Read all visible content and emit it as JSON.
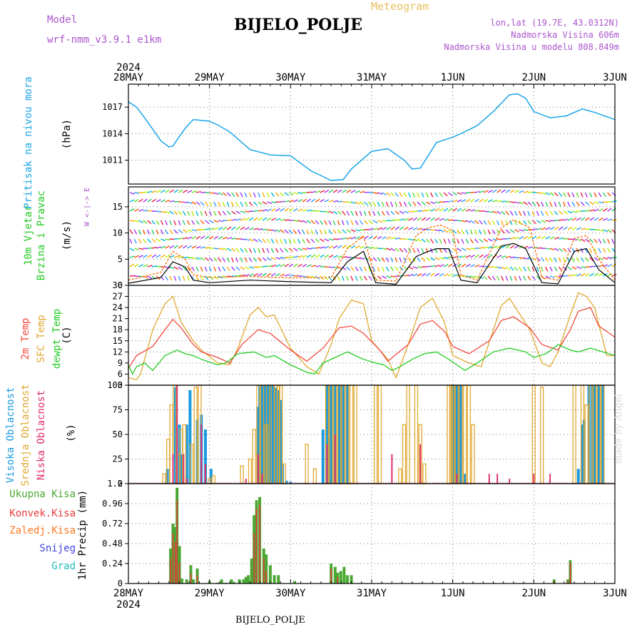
{
  "header": {
    "model_label": "Model",
    "model_name": "wrf-nmm_v3.9.1 e1km",
    "meteogram_label": "Meteogram",
    "station": "BIJELO_POLJE",
    "lonlat": "lon,lat (19.7E, 43.0312N)",
    "elevation": "Nadmorska Visina 606m",
    "model_elevation": "Nadmorska Visina u modelu 808.849m"
  },
  "footer": {
    "station": "BIJELO_POLJE",
    "credit": "made by Angel"
  },
  "time_axis": {
    "year": "2024",
    "labels": [
      "28MAY",
      "29MAY",
      "30MAY",
      "31MAY",
      "1JUN",
      "2JUN",
      "3JUN"
    ]
  },
  "colors": {
    "pressure": "#1ba6e8",
    "temp2m": "#f04a3c",
    "sfc_temp": "#e0a830",
    "dewpt": "#22cc22",
    "cloud_high": "#1a9be0",
    "cloud_mid": "#e0a830",
    "cloud_low": "#e0306a",
    "precip_total": "#4aa832",
    "precip_conv": "#e83a3a",
    "wind_speed": "#000000",
    "wind_gust": "#ff6a00",
    "purple_text": "#aa55cc"
  },
  "chart_data": [
    {
      "type": "line",
      "panel": "pressure",
      "ylabel_left": "Pritisak na nivou mora",
      "ylabel": "(hPa)",
      "yticks": [
        1011,
        1014,
        1017
      ],
      "ylim": [
        1008.3,
        1019.6
      ],
      "series": [
        {
          "x": [
            0,
            0.1,
            0.2,
            0.3,
            0.4,
            0.5,
            0.55,
            0.6,
            0.7,
            0.8,
            0.9,
            1.0,
            1.1,
            1.25,
            1.5,
            1.75,
            2.0,
            2.25,
            2.5,
            2.65,
            2.75,
            3.0,
            3.2,
            3.4,
            3.5,
            3.6,
            3.8,
            4.0,
            4.1,
            4.3,
            4.5,
            4.7,
            4.8,
            4.9,
            5.0,
            5.2,
            5.4,
            5.6,
            5.75,
            6.0
          ],
          "y": [
            1017.6,
            1017.0,
            1015.8,
            1014.5,
            1013.2,
            1012.5,
            1012.6,
            1013.3,
            1014.6,
            1015.6,
            1015.5,
            1015.4,
            1015.0,
            1014.2,
            1012.2,
            1011.6,
            1011.5,
            1009.8,
            1008.7,
            1008.8,
            1010.0,
            1012.0,
            1012.3,
            1011.0,
            1010.0,
            1010.1,
            1013.0,
            1013.6,
            1014.0,
            1014.9,
            1016.5,
            1018.4,
            1018.5,
            1018.0,
            1016.5,
            1015.8,
            1016.0,
            1016.8,
            1016.4,
            1015.6
          ]
        }
      ]
    },
    {
      "type": "line",
      "panel": "wind",
      "ylabel_left": [
        "10m Vjetar",
        "Brzina i Pravac"
      ],
      "ylabel": "(m/s)",
      "compass": "W <-|-> E",
      "yticks": [
        0,
        5,
        10,
        15
      ],
      "ylim": [
        0,
        18.8
      ],
      "series": [
        {
          "name": "speed",
          "x": [
            0,
            0.4,
            0.55,
            0.7,
            0.8,
            1.0,
            1.5,
            2.0,
            2.5,
            2.7,
            2.9,
            3.05,
            3.3,
            3.55,
            3.7,
            3.8,
            3.95,
            4.1,
            4.3,
            4.6,
            4.75,
            4.9,
            5.1,
            5.3,
            5.5,
            5.65,
            5.8,
            6.0
          ],
          "y": [
            0.4,
            1.5,
            4.5,
            3.5,
            1.0,
            0.5,
            1.0,
            0.7,
            0.5,
            4.5,
            6.5,
            0.5,
            0.2,
            5.5,
            6.5,
            7.0,
            7.0,
            1.0,
            0.5,
            7.5,
            8.0,
            7.0,
            0.5,
            0.3,
            6.5,
            7.0,
            3.0,
            0.5
          ]
        },
        {
          "name": "gust",
          "x": [
            0,
            0.4,
            0.55,
            0.7,
            0.8,
            1.0,
            1.5,
            2.0,
            2.5,
            2.7,
            2.9,
            3.05,
            3.3,
            3.55,
            3.7,
            3.85,
            4.0,
            4.1,
            4.3,
            4.6,
            4.75,
            4.95,
            5.1,
            5.3,
            5.5,
            5.65,
            5.8,
            6.0
          ],
          "y": [
            1.0,
            2.5,
            6.5,
            5.0,
            2.0,
            1.5,
            1.7,
            1.4,
            1.5,
            7.0,
            9.5,
            1.0,
            0.8,
            9.5,
            11.0,
            11.5,
            10.5,
            2.0,
            1.0,
            11.0,
            12.5,
            11.0,
            1.5,
            1.0,
            9.0,
            9.5,
            5.0,
            1.0
          ]
        }
      ]
    },
    {
      "type": "line",
      "panel": "temperature",
      "ylabel_left": [
        "2m Temp",
        "SFC Temp",
        "dewpt Temp"
      ],
      "ylabel": "(C)",
      "yticks": [
        3,
        6,
        9,
        12,
        15,
        18,
        21,
        24,
        27,
        30
      ],
      "ylim": [
        3,
        30
      ],
      "series": [
        {
          "name": "2m Temp",
          "x": [
            0,
            0.1,
            0.3,
            0.45,
            0.55,
            0.65,
            0.8,
            0.9,
            1.1,
            1.25,
            1.4,
            1.6,
            1.75,
            2.0,
            2.2,
            2.4,
            2.6,
            2.75,
            2.9,
            3.1,
            3.2,
            3.45,
            3.6,
            3.75,
            3.9,
            4.0,
            4.2,
            4.45,
            4.6,
            4.75,
            4.95,
            5.1,
            5.3,
            5.45,
            5.55,
            5.7,
            5.8,
            6.0
          ],
          "y": [
            7.5,
            11,
            13.5,
            18,
            20.8,
            18.5,
            14,
            12,
            10.5,
            9,
            14,
            18,
            17,
            12.5,
            9.5,
            13,
            18.5,
            19,
            17,
            12.5,
            9.5,
            14,
            19.5,
            20.5,
            17.5,
            13.5,
            11.5,
            15,
            20.5,
            21.5,
            18.5,
            14,
            12.5,
            18,
            23,
            24,
            19,
            16
          ]
        },
        {
          "name": "SFC Temp",
          "x": [
            0,
            0.1,
            0.15,
            0.3,
            0.45,
            0.5,
            0.55,
            0.65,
            0.8,
            0.9,
            1.1,
            1.25,
            1.35,
            1.5,
            1.6,
            1.7,
            1.8,
            2.0,
            2.2,
            2.35,
            2.5,
            2.6,
            2.75,
            2.9,
            3.0,
            3.2,
            3.3,
            3.45,
            3.6,
            3.75,
            3.9,
            4.0,
            4.2,
            4.35,
            4.6,
            4.7,
            4.95,
            5.1,
            5.2,
            5.3,
            5.45,
            5.55,
            5.65,
            5.75,
            5.9,
            6.0
          ],
          "y": [
            5,
            4.5,
            6,
            18,
            25,
            26,
            27,
            20,
            15,
            12.5,
            9,
            8.5,
            13,
            22,
            24,
            21.5,
            22,
            13,
            8,
            6,
            14,
            21,
            26,
            25,
            15,
            10,
            5,
            14,
            24,
            26.5,
            20,
            11,
            9,
            8,
            24.5,
            26.5,
            18,
            9,
            8,
            12,
            22,
            28,
            27,
            24,
            11,
            11
          ]
        },
        {
          "name": "dewpt Temp",
          "x": [
            0,
            0.05,
            0.1,
            0.2,
            0.3,
            0.45,
            0.6,
            0.7,
            0.8,
            0.9,
            1.1,
            1.2,
            1.35,
            1.55,
            1.7,
            1.8,
            2.0,
            2.2,
            2.3,
            2.4,
            2.55,
            2.7,
            2.8,
            2.9,
            3.05,
            3.15,
            3.25,
            3.35,
            3.5,
            3.65,
            3.8,
            3.95,
            4.05,
            4.15,
            4.3,
            4.5,
            4.7,
            4.9,
            5.0,
            5.15,
            5.3,
            5.45,
            5.55,
            5.7,
            5.85,
            6.0
          ],
          "y": [
            8.5,
            6,
            8,
            9,
            7,
            11,
            12.5,
            11.5,
            11,
            10,
            8.5,
            9,
            11.5,
            12,
            10.5,
            11,
            8.5,
            6.5,
            6,
            9,
            10.5,
            12,
            11,
            10,
            9,
            8.5,
            7,
            8,
            10,
            11.5,
            12,
            10,
            8.5,
            7,
            9,
            12,
            13,
            12,
            10.5,
            11.5,
            14,
            12.5,
            12,
            13,
            12,
            11
          ]
        }
      ]
    },
    {
      "type": "bar",
      "panel": "cloud",
      "ylabel_left": [
        "Visoka Oblacnost",
        "Srednja Oblacnost",
        "Niska Oblacnost"
      ],
      "ylabel": "(%)",
      "yticks": [
        0,
        25,
        50,
        75,
        100
      ],
      "ylim": [
        0,
        100
      ],
      "series": [
        {
          "name": "Visoka",
          "x": [
            0.48,
            0.58,
            0.63,
            0.66,
            0.72,
            0.76,
            0.85,
            0.9,
            0.95,
            1.02,
            1.6,
            1.62,
            1.65,
            1.67,
            1.7,
            1.72,
            1.75,
            1.78,
            1.8,
            1.82,
            1.85,
            1.88,
            1.9,
            1.95,
            2.0,
            2.4,
            2.45,
            2.47,
            2.5,
            2.55,
            2.6,
            2.62,
            2.65,
            2.7,
            4.0,
            4.02,
            4.05,
            4.08,
            4.1,
            4.15,
            5.55,
            5.6,
            5.62,
            5.68,
            5.72,
            5.75,
            5.8,
            5.85
          ],
          "y": [
            15,
            98,
            60,
            30,
            60,
            95,
            65,
            70,
            55,
            15,
            78,
            100,
            100,
            100,
            100,
            100,
            100,
            100,
            98,
            97,
            95,
            85,
            20,
            3,
            2,
            55,
            100,
            100,
            100,
            100,
            100,
            100,
            100,
            100,
            100,
            100,
            100,
            100,
            100,
            10,
            15,
            60,
            65,
            100,
            100,
            100,
            100,
            100
          ]
        },
        {
          "name": "Srednja",
          "x": [
            0.44,
            0.49,
            0.53,
            0.57,
            0.62,
            0.65,
            0.69,
            0.78,
            0.83,
            0.88,
            1.0,
            1.05,
            1.4,
            1.5,
            1.55,
            1.6,
            1.65,
            1.7,
            1.72,
            1.78,
            1.82,
            1.85,
            1.88,
            1.92,
            2.2,
            2.3,
            2.45,
            2.5,
            2.55,
            2.6,
            2.65,
            2.7,
            2.75,
            2.8,
            3.05,
            3.1,
            3.35,
            3.4,
            3.45,
            3.55,
            3.6,
            3.65,
            3.95,
            3.98,
            4.0,
            4.05,
            4.1,
            4.15,
            4.2,
            4.25,
            5.0,
            5.1,
            5.5,
            5.6,
            5.65,
            5.7,
            5.75,
            5.8,
            5.85
          ],
          "y": [
            10,
            45,
            80,
            100,
            30,
            55,
            60,
            40,
            98,
            100,
            5,
            8,
            18,
            25,
            55,
            100,
            100,
            60,
            100,
            100,
            100,
            100,
            100,
            20,
            40,
            15,
            100,
            100,
            100,
            100,
            100,
            100,
            100,
            100,
            100,
            100,
            15,
            60,
            100,
            100,
            60,
            20,
            100,
            100,
            100,
            100,
            100,
            100,
            100,
            60,
            100,
            98,
            100,
            100,
            80,
            100,
            100,
            100,
            100
          ]
        },
        {
          "name": "Niska",
          "x": [
            0.55,
            0.6,
            0.68,
            0.72,
            0.9,
            0.95,
            1.45,
            1.6,
            1.65,
            2.45,
            2.55,
            3.25,
            3.6,
            4.05,
            4.45,
            4.55,
            4.7,
            5.0,
            5.2
          ],
          "y": [
            30,
            100,
            30,
            5,
            60,
            20,
            5,
            30,
            10,
            40,
            50,
            30,
            40,
            10,
            10,
            10,
            5,
            10,
            10
          ]
        }
      ]
    },
    {
      "type": "bar",
      "panel": "precip",
      "ylabel_left": [
        "Ukupna Kisa",
        "Konvek.Kisa",
        "Zaledj.Kisa",
        "Snijeg",
        "Grad"
      ],
      "ylabel": "1hr Precip (mm)",
      "yticks": [
        0,
        0.24,
        0.48,
        0.72,
        0.96,
        1.2
      ],
      "ylim": [
        0,
        1.2
      ],
      "series": [
        {
          "name": "Ukupna Kisa",
          "x": [
            0.52,
            0.55,
            0.58,
            0.6,
            0.63,
            0.66,
            0.72,
            0.77,
            0.8,
            0.85,
            1.0,
            1.1,
            1.15,
            1.2,
            1.27,
            1.3,
            1.37,
            1.42,
            1.45,
            1.48,
            1.52,
            1.55,
            1.58,
            1.62,
            1.67,
            1.7,
            1.75,
            1.8,
            1.85,
            2.05,
            2.5,
            2.55,
            2.58,
            2.62,
            2.66,
            2.7,
            2.75,
            5.25,
            5.42,
            5.45
          ],
          "y": [
            0.42,
            0.72,
            0.68,
            1.15,
            0.45,
            0.06,
            0.05,
            0.22,
            0.05,
            0.18,
            0.03,
            0.01,
            0.05,
            0.01,
            0.05,
            0.02,
            0.05,
            0.05,
            0.08,
            0.1,
            0.3,
            0.82,
            1.0,
            1.04,
            0.42,
            0.35,
            0.22,
            0.1,
            0.1,
            0.03,
            0.24,
            0.2,
            0.13,
            0.15,
            0.2,
            0.1,
            0.1,
            0.05,
            0.05,
            0.28
          ]
        },
        {
          "name": "Konvek.Kisa",
          "x": [
            0.52,
            0.55,
            0.58,
            0.6,
            0.63,
            0.77,
            0.85,
            1.55,
            1.58,
            1.62,
            1.67,
            1.7,
            2.5,
            2.58,
            5.25,
            5.42,
            5.45
          ],
          "y": [
            0.3,
            0.6,
            0.5,
            1.0,
            0.25,
            0.12,
            0.1,
            0.6,
            0.9,
            0.95,
            0.3,
            0.15,
            0.18,
            0.08,
            0.03,
            0.03,
            0.25
          ]
        }
      ]
    }
  ]
}
